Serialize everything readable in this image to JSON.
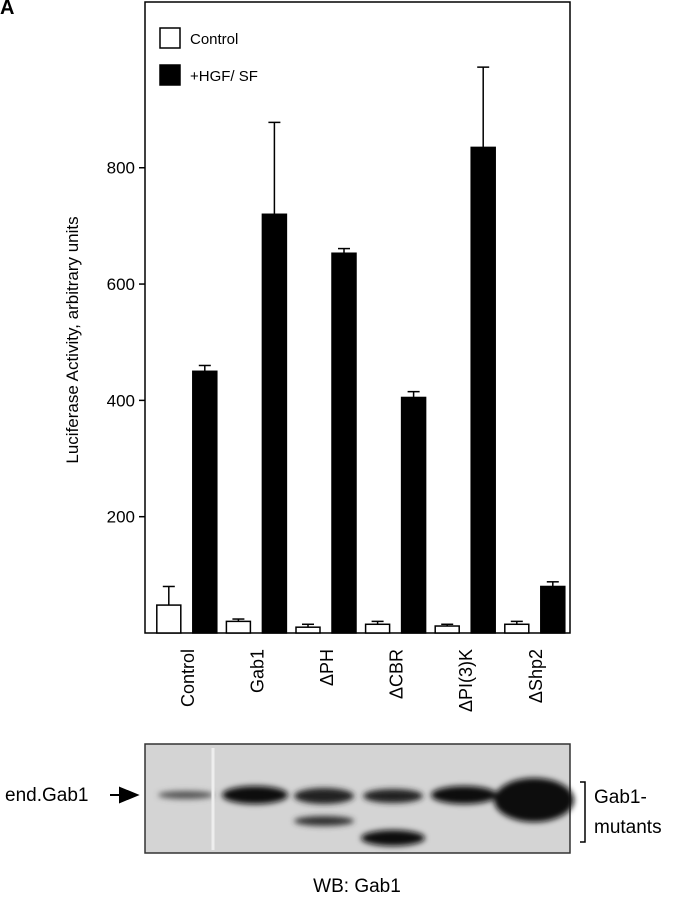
{
  "panel_label": "A",
  "chart_data": {
    "type": "bar",
    "y_label": "Luciferase Activity, arbitrary units",
    "categories": [
      "Control",
      "Gab1",
      "ΔPH",
      "ΔCBR",
      "ΔPI(3)K",
      "ΔShp2"
    ],
    "series": [
      {
        "name": "Control",
        "color": "#ffffff",
        "values": [
          48,
          20,
          10,
          15,
          12,
          15
        ],
        "errors": [
          32,
          4,
          5,
          5,
          3,
          5
        ]
      },
      {
        "name": "+HGF/ SF",
        "color": "#000000",
        "values": [
          450,
          720,
          653,
          405,
          835,
          80
        ],
        "errors": [
          10,
          158,
          8,
          10,
          138,
          8
        ]
      }
    ],
    "ylim": [
      0,
      1085
    ],
    "yticks": [
      200,
      400,
      600,
      800
    ],
    "legend": "top-left"
  },
  "blot": {
    "marker_label": "end.Gab1",
    "mutants_label": [
      "Gab1-",
      "mutants"
    ],
    "caption": "WB: Gab1"
  }
}
